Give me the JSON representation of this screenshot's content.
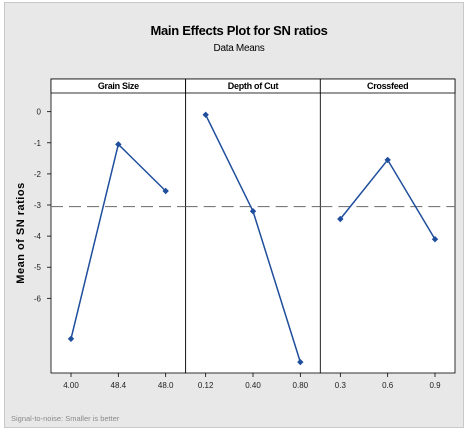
{
  "chart_data": {
    "type": "line",
    "title": "Main Effects Plot for SN ratios",
    "subtitle": "Data Means",
    "ylabel": "Mean of SN ratios",
    "footnote": "Signal-to-noise: Smaller is better",
    "ylim": [
      -8.4,
      0.6
    ],
    "yticks": [
      0,
      -1,
      -2,
      -3,
      -4,
      -5,
      -6
    ],
    "ytick_labels": [
      "0",
      "-1",
      "-2",
      "-3",
      "-4",
      "-5",
      "-6"
    ],
    "reference_line": -3.05,
    "line_color": "#1f4e9c",
    "ref_color": "#7a7a7a",
    "panels": [
      {
        "label": "Grain Size",
        "categories": [
          "4.00",
          "48.4",
          "48.0"
        ],
        "values": [
          -7.3,
          -1.05,
          -2.55
        ]
      },
      {
        "label": "Depth of Cut",
        "categories": [
          "0.12",
          "0.40",
          "0.80"
        ],
        "values": [
          -0.1,
          -3.2,
          -8.05
        ]
      },
      {
        "label": "Crossfeed",
        "categories": [
          "0.3",
          "0.6",
          "0.9"
        ],
        "values": [
          -3.45,
          -1.55,
          -4.1
        ]
      }
    ]
  }
}
